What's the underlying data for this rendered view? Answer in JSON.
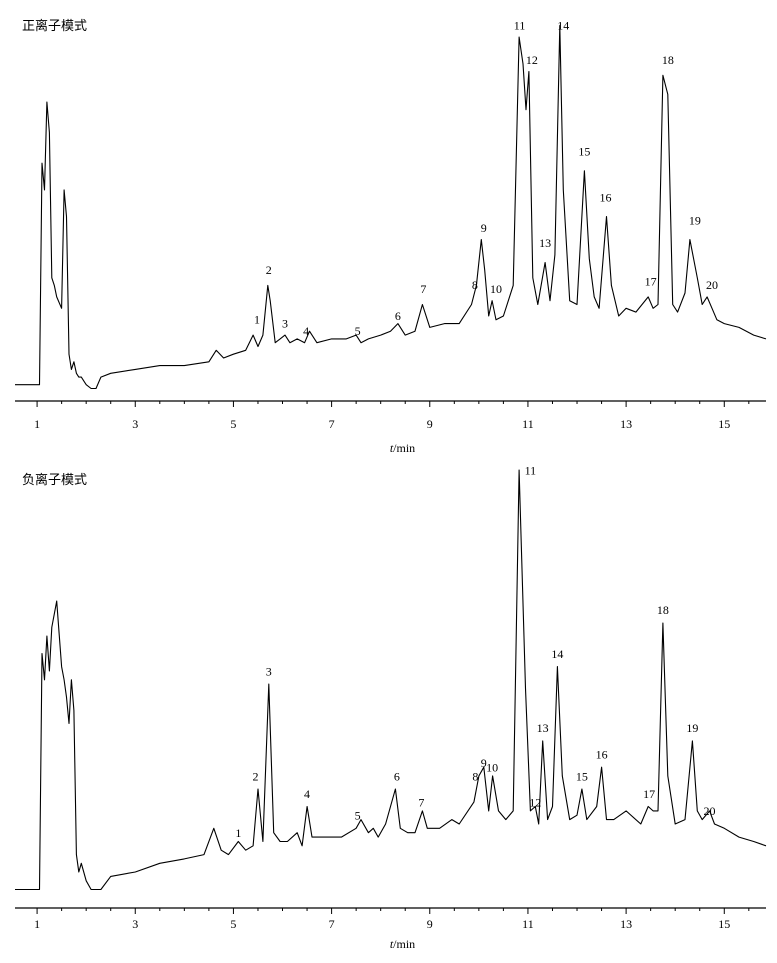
{
  "chart_data": [
    {
      "type": "line",
      "title": "正离子模式",
      "xlabel_italic": "t",
      "xlabel_rest": "/min",
      "xlim": [
        0.55,
        15.85
      ],
      "x_ticks": [
        1,
        3,
        5,
        7,
        9,
        11,
        13,
        15
      ],
      "grid": false,
      "legend": "none",
      "baseline": 0.04,
      "x": [
        0.55,
        1.05,
        1.1,
        1.15,
        1.2,
        1.25,
        1.3,
        1.35,
        1.4,
        1.5,
        1.55,
        1.6,
        1.65,
        1.7,
        1.75,
        1.8,
        1.85,
        1.9,
        2.0,
        2.1,
        2.2,
        2.3,
        2.5,
        3.0,
        3.5,
        4.0,
        4.5,
        4.65,
        4.8,
        5.0,
        5.25,
        5.4,
        5.5,
        5.6,
        5.7,
        5.75,
        5.85,
        5.95,
        6.05,
        6.15,
        6.3,
        6.45,
        6.55,
        6.7,
        7.0,
        7.3,
        7.5,
        7.6,
        7.75,
        8.0,
        8.2,
        8.35,
        8.5,
        8.7,
        8.85,
        9.0,
        9.3,
        9.6,
        9.85,
        9.95,
        10.05,
        10.12,
        10.2,
        10.27,
        10.35,
        10.5,
        10.7,
        10.82,
        10.9,
        10.96,
        11.02,
        11.1,
        11.2,
        11.35,
        11.45,
        11.55,
        11.65,
        11.72,
        11.85,
        12.0,
        12.15,
        12.25,
        12.35,
        12.45,
        12.6,
        12.7,
        12.85,
        13.0,
        13.2,
        13.45,
        13.55,
        13.65,
        13.75,
        13.85,
        13.95,
        14.05,
        14.2,
        14.3,
        14.45,
        14.55,
        14.65,
        14.75,
        14.85,
        15.0,
        15.3,
        15.6,
        15.85
      ],
      "y": [
        0.04,
        0.04,
        0.62,
        0.55,
        0.78,
        0.7,
        0.32,
        0.3,
        0.27,
        0.24,
        0.55,
        0.48,
        0.12,
        0.08,
        0.1,
        0.07,
        0.06,
        0.06,
        0.04,
        0.03,
        0.03,
        0.06,
        0.07,
        0.08,
        0.09,
        0.09,
        0.1,
        0.13,
        0.11,
        0.12,
        0.13,
        0.17,
        0.14,
        0.17,
        0.3,
        0.26,
        0.15,
        0.16,
        0.17,
        0.15,
        0.16,
        0.15,
        0.18,
        0.15,
        0.16,
        0.16,
        0.17,
        0.15,
        0.16,
        0.17,
        0.18,
        0.2,
        0.17,
        0.18,
        0.25,
        0.19,
        0.2,
        0.2,
        0.25,
        0.3,
        0.42,
        0.34,
        0.22,
        0.26,
        0.21,
        0.22,
        0.3,
        0.95,
        0.88,
        0.76,
        0.86,
        0.32,
        0.25,
        0.36,
        0.26,
        0.38,
        0.98,
        0.55,
        0.26,
        0.25,
        0.6,
        0.37,
        0.27,
        0.24,
        0.48,
        0.3,
        0.22,
        0.24,
        0.23,
        0.27,
        0.24,
        0.25,
        0.85,
        0.8,
        0.25,
        0.23,
        0.28,
        0.42,
        0.32,
        0.25,
        0.27,
        0.24,
        0.21,
        0.2,
        0.19,
        0.17,
        0.16
      ],
      "peak_labels": [
        {
          "text": "1",
          "x": 5.48,
          "y": 0.2
        },
        {
          "text": "2",
          "x": 5.72,
          "y": 0.33
        },
        {
          "text": "3",
          "x": 6.05,
          "y": 0.19
        },
        {
          "text": "4",
          "x": 6.48,
          "y": 0.17
        },
        {
          "text": "5",
          "x": 7.53,
          "y": 0.17
        },
        {
          "text": "6",
          "x": 8.35,
          "y": 0.21
        },
        {
          "text": "7",
          "x": 8.87,
          "y": 0.28
        },
        {
          "text": "8",
          "x": 9.92,
          "y": 0.29
        },
        {
          "text": "9",
          "x": 10.1,
          "y": 0.44
        },
        {
          "text": "10",
          "x": 10.35,
          "y": 0.28
        },
        {
          "text": "11",
          "x": 10.83,
          "y": 0.97
        },
        {
          "text": "12",
          "x": 11.08,
          "y": 0.88
        },
        {
          "text": "13",
          "x": 11.35,
          "y": 0.4
        },
        {
          "text": "14",
          "x": 11.72,
          "y": 0.97
        },
        {
          "text": "15",
          "x": 12.15,
          "y": 0.64
        },
        {
          "text": "16",
          "x": 12.58,
          "y": 0.52
        },
        {
          "text": "17",
          "x": 13.5,
          "y": 0.3
        },
        {
          "text": "18",
          "x": 13.85,
          "y": 0.88
        },
        {
          "text": "19",
          "x": 14.4,
          "y": 0.46
        },
        {
          "text": "20",
          "x": 14.75,
          "y": 0.29
        }
      ]
    },
    {
      "type": "line",
      "title": "负离子模式",
      "xlabel_italic": "t",
      "xlabel_rest": "/min",
      "xlim": [
        0.55,
        15.85
      ],
      "x_ticks": [
        1,
        3,
        5,
        7,
        9,
        11,
        13,
        15
      ],
      "grid": false,
      "legend": "none",
      "baseline": 0.04,
      "x": [
        0.55,
        1.05,
        1.1,
        1.15,
        1.2,
        1.25,
        1.3,
        1.4,
        1.5,
        1.55,
        1.6,
        1.65,
        1.7,
        1.75,
        1.8,
        1.85,
        1.9,
        2.0,
        2.1,
        2.3,
        2.5,
        3.0,
        3.5,
        4.0,
        4.4,
        4.6,
        4.75,
        4.9,
        5.1,
        5.25,
        5.4,
        5.5,
        5.6,
        5.72,
        5.82,
        5.95,
        6.1,
        6.3,
        6.4,
        6.5,
        6.6,
        6.8,
        7.2,
        7.5,
        7.6,
        7.75,
        7.85,
        7.95,
        8.1,
        8.3,
        8.4,
        8.55,
        8.7,
        8.85,
        8.95,
        9.2,
        9.45,
        9.6,
        9.9,
        10.0,
        10.1,
        10.2,
        10.28,
        10.4,
        10.55,
        10.7,
        10.82,
        10.95,
        11.05,
        11.15,
        11.22,
        11.3,
        11.4,
        11.5,
        11.6,
        11.7,
        11.85,
        12.0,
        12.1,
        12.2,
        12.4,
        12.5,
        12.6,
        12.75,
        13.0,
        13.3,
        13.45,
        13.55,
        13.65,
        13.75,
        13.85,
        14.0,
        14.2,
        14.35,
        14.45,
        14.55,
        14.7,
        14.8,
        15.0,
        15.3,
        15.6,
        15.85
      ],
      "y": [
        0.04,
        0.04,
        0.58,
        0.52,
        0.62,
        0.54,
        0.64,
        0.7,
        0.55,
        0.52,
        0.48,
        0.42,
        0.52,
        0.45,
        0.12,
        0.08,
        0.1,
        0.06,
        0.04,
        0.04,
        0.07,
        0.08,
        0.1,
        0.11,
        0.12,
        0.18,
        0.13,
        0.12,
        0.15,
        0.13,
        0.14,
        0.27,
        0.15,
        0.51,
        0.17,
        0.15,
        0.15,
        0.17,
        0.14,
        0.23,
        0.16,
        0.16,
        0.16,
        0.18,
        0.2,
        0.17,
        0.18,
        0.16,
        0.19,
        0.27,
        0.18,
        0.17,
        0.17,
        0.22,
        0.18,
        0.18,
        0.2,
        0.19,
        0.24,
        0.3,
        0.32,
        0.22,
        0.3,
        0.22,
        0.2,
        0.22,
        1.0,
        0.5,
        0.22,
        0.23,
        0.19,
        0.38,
        0.2,
        0.23,
        0.55,
        0.3,
        0.2,
        0.21,
        0.27,
        0.2,
        0.23,
        0.32,
        0.2,
        0.2,
        0.22,
        0.19,
        0.23,
        0.22,
        0.22,
        0.65,
        0.3,
        0.19,
        0.2,
        0.38,
        0.22,
        0.2,
        0.22,
        0.19,
        0.18,
        0.16,
        0.15,
        0.14
      ],
      "peak_labels": [
        {
          "text": "1",
          "x": 5.1,
          "y": 0.16
        },
        {
          "text": "2",
          "x": 5.45,
          "y": 0.29
        },
        {
          "text": "3",
          "x": 5.72,
          "y": 0.53
        },
        {
          "text": "4",
          "x": 6.5,
          "y": 0.25
        },
        {
          "text": "5",
          "x": 7.53,
          "y": 0.2
        },
        {
          "text": "6",
          "x": 8.33,
          "y": 0.29
        },
        {
          "text": "7",
          "x": 8.83,
          "y": 0.23
        },
        {
          "text": "8",
          "x": 9.93,
          "y": 0.29
        },
        {
          "text": "9",
          "x": 10.1,
          "y": 0.32
        },
        {
          "text": "10",
          "x": 10.27,
          "y": 0.31
        },
        {
          "text": "11",
          "x": 11.05,
          "y": 0.99
        },
        {
          "text": "12",
          "x": 11.15,
          "y": 0.23
        },
        {
          "text": "13",
          "x": 11.3,
          "y": 0.4
        },
        {
          "text": "14",
          "x": 11.6,
          "y": 0.57
        },
        {
          "text": "15",
          "x": 12.1,
          "y": 0.29
        },
        {
          "text": "16",
          "x": 12.5,
          "y": 0.34
        },
        {
          "text": "17",
          "x": 13.47,
          "y": 0.25
        },
        {
          "text": "18",
          "x": 13.75,
          "y": 0.67
        },
        {
          "text": "19",
          "x": 14.35,
          "y": 0.4
        },
        {
          "text": "20",
          "x": 14.7,
          "y": 0.21
        }
      ]
    }
  ]
}
